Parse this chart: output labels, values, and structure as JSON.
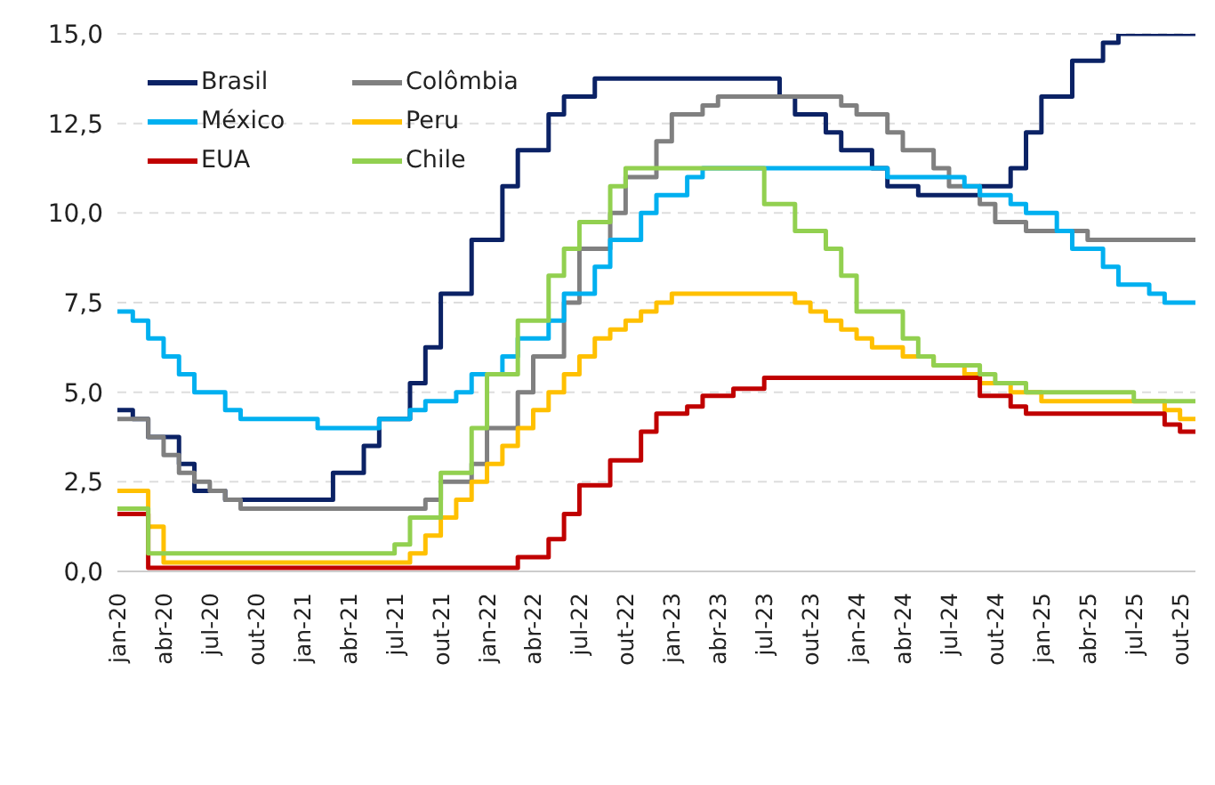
{
  "chart_data": {
    "type": "step",
    "categories": [
      "jan-20",
      null,
      null,
      "abr-20",
      null,
      null,
      "jul-20",
      null,
      null,
      "out-20",
      null,
      null,
      "jan-21",
      null,
      null,
      "abr-21",
      null,
      null,
      "jul-21",
      null,
      null,
      "out-21",
      null,
      null,
      "jan-22",
      null,
      null,
      "abr-22",
      null,
      null,
      "jul-22",
      null,
      null,
      "out-22",
      null,
      null,
      "jan-23",
      null,
      null,
      "abr-23",
      null,
      null,
      "jul-23",
      null,
      null,
      "out-23",
      null,
      null,
      "jan-24",
      null,
      null,
      "abr-24",
      null,
      null,
      "jul-24",
      null,
      null,
      "out-24",
      null,
      null,
      "jan-25",
      null,
      null,
      "abr-25",
      null,
      null,
      "jul-25",
      null,
      null,
      "out-25",
      null
    ],
    "series": [
      {
        "name": "Brasil",
        "color": "#0b2265",
        "values": [
          4.5,
          4.25,
          3.75,
          3.75,
          3.0,
          2.25,
          2.25,
          2.0,
          2.0,
          2.0,
          2.0,
          2.0,
          2.0,
          2.0,
          2.75,
          2.75,
          3.5,
          4.25,
          4.25,
          5.25,
          6.25,
          7.75,
          7.75,
          9.25,
          9.25,
          10.75,
          11.75,
          11.75,
          12.75,
          13.25,
          13.25,
          13.75,
          13.75,
          13.75,
          13.75,
          13.75,
          13.75,
          13.75,
          13.75,
          13.75,
          13.75,
          13.75,
          13.75,
          13.25,
          12.75,
          12.75,
          12.25,
          11.75,
          11.75,
          11.25,
          10.75,
          10.75,
          10.5,
          10.5,
          10.5,
          10.5,
          10.75,
          10.75,
          11.25,
          12.25,
          13.25,
          13.25,
          14.25,
          14.25,
          14.75,
          15.0,
          15.0,
          15.0,
          15.0,
          15.0,
          15.0
        ]
      },
      {
        "name": "Colômbia",
        "color": "#808080",
        "values": [
          4.25,
          4.25,
          3.75,
          3.25,
          2.75,
          2.5,
          2.25,
          2.0,
          1.75,
          1.75,
          1.75,
          1.75,
          1.75,
          1.75,
          1.75,
          1.75,
          1.75,
          1.75,
          1.75,
          1.75,
          2.0,
          2.5,
          2.5,
          3.0,
          4.0,
          4.0,
          5.0,
          6.0,
          6.0,
          7.5,
          9.0,
          9.0,
          10.0,
          11.0,
          11.0,
          12.0,
          12.75,
          12.75,
          13.0,
          13.25,
          13.25,
          13.25,
          13.25,
          13.25,
          13.25,
          13.25,
          13.25,
          13.0,
          12.75,
          12.75,
          12.25,
          11.75,
          11.75,
          11.25,
          10.75,
          10.75,
          10.25,
          9.75,
          9.75,
          9.5,
          9.5,
          9.5,
          9.5,
          9.25,
          9.25,
          9.25,
          9.25,
          9.25,
          9.25,
          9.25,
          9.25
        ]
      },
      {
        "name": "México",
        "color": "#00b0f0",
        "values": [
          7.25,
          7.0,
          6.5,
          6.0,
          5.5,
          5.0,
          5.0,
          4.5,
          4.25,
          4.25,
          4.25,
          4.25,
          4.25,
          4.0,
          4.0,
          4.0,
          4.0,
          4.25,
          4.25,
          4.5,
          4.75,
          4.75,
          5.0,
          5.5,
          5.5,
          6.0,
          6.5,
          6.5,
          7.0,
          7.75,
          7.75,
          8.5,
          9.25,
          9.25,
          10.0,
          10.5,
          10.5,
          11.0,
          11.25,
          11.25,
          11.25,
          11.25,
          11.25,
          11.25,
          11.25,
          11.25,
          11.25,
          11.25,
          11.25,
          11.25,
          11.0,
          11.0,
          11.0,
          11.0,
          11.0,
          10.75,
          10.5,
          10.5,
          10.25,
          10.0,
          10.0,
          9.5,
          9.0,
          9.0,
          8.5,
          8.0,
          8.0,
          7.75,
          7.5,
          7.5,
          7.5
        ]
      },
      {
        "name": "Peru",
        "color": "#ffc000",
        "values": [
          2.25,
          2.25,
          1.25,
          0.25,
          0.25,
          0.25,
          0.25,
          0.25,
          0.25,
          0.25,
          0.25,
          0.25,
          0.25,
          0.25,
          0.25,
          0.25,
          0.25,
          0.25,
          0.25,
          0.5,
          1.0,
          1.5,
          2.0,
          2.5,
          3.0,
          3.5,
          4.0,
          4.5,
          5.0,
          5.5,
          6.0,
          6.5,
          6.75,
          7.0,
          7.25,
          7.5,
          7.75,
          7.75,
          7.75,
          7.75,
          7.75,
          7.75,
          7.75,
          7.75,
          7.5,
          7.25,
          7.0,
          6.75,
          6.5,
          6.25,
          6.25,
          6.0,
          6.0,
          5.75,
          5.75,
          5.5,
          5.25,
          5.25,
          5.0,
          5.0,
          4.75,
          4.75,
          4.75,
          4.75,
          4.75,
          4.75,
          4.75,
          4.75,
          4.5,
          4.25,
          4.25
        ]
      },
      {
        "name": "EUA",
        "color": "#c00000",
        "values": [
          1.6,
          1.6,
          0.1,
          0.1,
          0.1,
          0.1,
          0.1,
          0.1,
          0.1,
          0.1,
          0.1,
          0.1,
          0.1,
          0.1,
          0.1,
          0.1,
          0.1,
          0.1,
          0.1,
          0.1,
          0.1,
          0.1,
          0.1,
          0.1,
          0.1,
          0.1,
          0.4,
          0.4,
          0.9,
          1.6,
          2.4,
          2.4,
          3.1,
          3.1,
          3.9,
          4.4,
          4.4,
          4.6,
          4.9,
          4.9,
          5.1,
          5.1,
          5.4,
          5.4,
          5.4,
          5.4,
          5.4,
          5.4,
          5.4,
          5.4,
          5.4,
          5.4,
          5.4,
          5.4,
          5.4,
          5.4,
          4.9,
          4.9,
          4.6,
          4.4,
          4.4,
          4.4,
          4.4,
          4.4,
          4.4,
          4.4,
          4.4,
          4.4,
          4.1,
          3.9,
          3.9
        ]
      },
      {
        "name": "Chile",
        "color": "#92d050",
        "values": [
          1.75,
          1.75,
          0.5,
          0.5,
          0.5,
          0.5,
          0.5,
          0.5,
          0.5,
          0.5,
          0.5,
          0.5,
          0.5,
          0.5,
          0.5,
          0.5,
          0.5,
          0.5,
          0.75,
          1.5,
          1.5,
          2.75,
          2.75,
          4.0,
          5.5,
          5.5,
          7.0,
          7.0,
          8.25,
          9.0,
          9.75,
          9.75,
          10.75,
          11.25,
          11.25,
          11.25,
          11.25,
          11.25,
          11.25,
          11.25,
          11.25,
          11.25,
          10.25,
          10.25,
          9.5,
          9.5,
          9.0,
          8.25,
          7.25,
          7.25,
          7.25,
          6.5,
          6.0,
          5.75,
          5.75,
          5.75,
          5.5,
          5.25,
          5.25,
          5.0,
          5.0,
          5.0,
          5.0,
          5.0,
          5.0,
          5.0,
          4.75,
          4.75,
          4.75,
          4.75,
          4.75
        ]
      }
    ],
    "ylim": [
      0,
      15
    ],
    "yticks": [
      {
        "value": 0,
        "label": "0,0"
      },
      {
        "value": 2.5,
        "label": "2,5"
      },
      {
        "value": 5,
        "label": "5,0"
      },
      {
        "value": 7.5,
        "label": "7,5"
      },
      {
        "value": 10,
        "label": "10,0"
      },
      {
        "value": 12.5,
        "label": "12,5"
      },
      {
        "value": 15,
        "label": "15,0"
      }
    ],
    "grid": "y",
    "legend": "top left",
    "marker": "none",
    "line_style": "solid"
  }
}
